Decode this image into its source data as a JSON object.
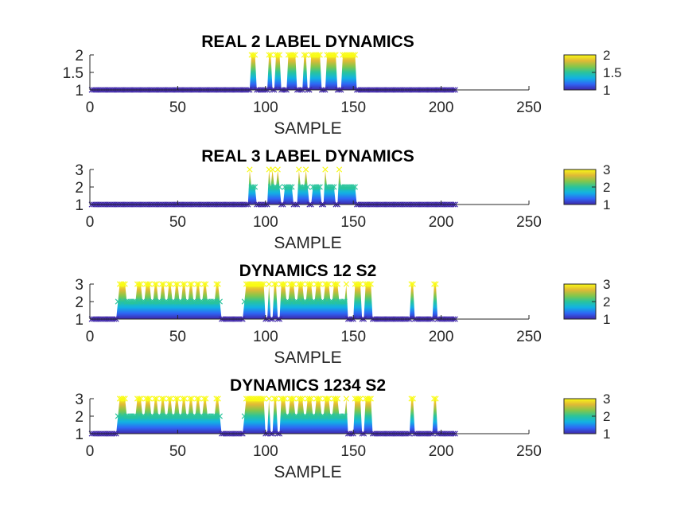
{
  "colormap": {
    "name": "parula",
    "stops": [
      "#3e26a8",
      "#2f66f5",
      "#12b2e3",
      "#29c49c",
      "#85c64a",
      "#e0b936",
      "#f9fb15"
    ]
  },
  "chart_data": [
    {
      "type": "area",
      "title": "REAL 2 LABEL DYNAMICS",
      "xlabel": "SAMPLE",
      "ylabel": "",
      "xlim": [
        0,
        250
      ],
      "ylim": [
        1,
        2
      ],
      "xticks": [
        "0",
        "50",
        "100",
        "150",
        "200",
        "250"
      ],
      "yticks": [
        "1",
        "1.5",
        "2"
      ],
      "colorbar_ticks": [
        "1",
        "1.5",
        "2"
      ],
      "n_samples": 208,
      "segments": [
        [
          1,
          91,
          1
        ],
        [
          92,
          94,
          2
        ],
        [
          95,
          101,
          1
        ],
        [
          102,
          103,
          2
        ],
        [
          104,
          105,
          1
        ],
        [
          106,
          108,
          2
        ],
        [
          109,
          112,
          1
        ],
        [
          113,
          117,
          2
        ],
        [
          118,
          121,
          1
        ],
        [
          122,
          123,
          2
        ],
        [
          124,
          125,
          1
        ],
        [
          126,
          131,
          2
        ],
        [
          132,
          134,
          1
        ],
        [
          135,
          140,
          2
        ],
        [
          141,
          143,
          1
        ],
        [
          144,
          151,
          2
        ],
        [
          152,
          208,
          1
        ]
      ]
    },
    {
      "type": "area",
      "title": "REAL 3 LABEL DYNAMICS",
      "xlabel": "SAMPLE",
      "ylabel": "",
      "xlim": [
        0,
        250
      ],
      "ylim": [
        1,
        3
      ],
      "xticks": [
        "0",
        "50",
        "100",
        "150",
        "200",
        "250"
      ],
      "yticks": [
        "1",
        "2",
        "3"
      ],
      "colorbar_ticks": [
        "1",
        "2",
        "3"
      ],
      "n_samples": 208,
      "segments": [
        [
          1,
          90,
          1
        ],
        [
          91,
          91,
          3
        ],
        [
          92,
          94,
          2
        ],
        [
          95,
          101,
          1
        ],
        [
          102,
          102,
          3
        ],
        [
          103,
          103,
          2
        ],
        [
          104,
          104,
          3
        ],
        [
          105,
          106,
          2
        ],
        [
          107,
          107,
          3
        ],
        [
          108,
          108,
          2
        ],
        [
          109,
          110,
          1
        ],
        [
          111,
          115,
          2
        ],
        [
          116,
          118,
          1
        ],
        [
          119,
          119,
          3
        ],
        [
          120,
          122,
          2
        ],
        [
          123,
          123,
          3
        ],
        [
          124,
          124,
          2
        ],
        [
          125,
          126,
          1
        ],
        [
          127,
          131,
          2
        ],
        [
          132,
          133,
          1
        ],
        [
          134,
          134,
          3
        ],
        [
          135,
          139,
          2
        ],
        [
          140,
          141,
          1
        ],
        [
          142,
          142,
          3
        ],
        [
          143,
          151,
          2
        ],
        [
          152,
          208,
          1
        ]
      ]
    },
    {
      "type": "area",
      "title": "DYNAMICS 12 S2",
      "xlabel": "SAMPLE",
      "ylabel": "",
      "xlim": [
        0,
        250
      ],
      "ylim": [
        1,
        3
      ],
      "xticks": [
        "0",
        "50",
        "100",
        "150",
        "200",
        "250"
      ],
      "yticks": [
        "1",
        "2",
        "3"
      ],
      "colorbar_ticks": [
        "1",
        "2",
        "3"
      ],
      "n_samples": 208,
      "segments": [
        [
          1,
          15,
          1
        ],
        [
          16,
          16,
          2
        ],
        [
          17,
          20,
          3
        ],
        [
          21,
          26,
          2
        ],
        [
          27,
          29,
          3
        ],
        [
          30,
          31,
          2
        ],
        [
          32,
          34,
          3
        ],
        [
          35,
          36,
          2
        ],
        [
          37,
          38,
          3
        ],
        [
          39,
          40,
          2
        ],
        [
          41,
          42,
          3
        ],
        [
          43,
          44,
          2
        ],
        [
          45,
          46,
          3
        ],
        [
          47,
          48,
          2
        ],
        [
          49,
          50,
          3
        ],
        [
          51,
          52,
          2
        ],
        [
          53,
          54,
          3
        ],
        [
          55,
          56,
          2
        ],
        [
          57,
          58,
          3
        ],
        [
          59,
          60,
          2
        ],
        [
          61,
          62,
          3
        ],
        [
          63,
          64,
          2
        ],
        [
          65,
          66,
          3
        ],
        [
          67,
          71,
          2
        ],
        [
          72,
          73,
          3
        ],
        [
          74,
          74,
          2
        ],
        [
          75,
          87,
          1
        ],
        [
          88,
          88,
          2
        ],
        [
          89,
          99,
          3
        ],
        [
          100,
          101,
          1
        ],
        [
          102,
          102,
          3
        ],
        [
          103,
          104,
          1
        ],
        [
          105,
          106,
          3
        ],
        [
          107,
          108,
          1
        ],
        [
          109,
          111,
          3
        ],
        [
          112,
          113,
          2
        ],
        [
          114,
          116,
          3
        ],
        [
          117,
          118,
          2
        ],
        [
          119,
          121,
          3
        ],
        [
          122,
          123,
          2
        ],
        [
          124,
          126,
          3
        ],
        [
          127,
          128,
          2
        ],
        [
          129,
          131,
          3
        ],
        [
          132,
          133,
          2
        ],
        [
          134,
          136,
          3
        ],
        [
          137,
          138,
          2
        ],
        [
          139,
          141,
          3
        ],
        [
          142,
          145,
          2
        ],
        [
          146,
          146,
          3
        ],
        [
          147,
          150,
          1
        ],
        [
          151,
          154,
          3
        ],
        [
          155,
          156,
          1
        ],
        [
          157,
          160,
          3
        ],
        [
          161,
          182,
          1
        ],
        [
          183,
          184,
          3
        ],
        [
          185,
          195,
          1
        ],
        [
          196,
          197,
          3
        ],
        [
          198,
          208,
          1
        ]
      ]
    },
    {
      "type": "area",
      "title": "DYNAMICS 1234 S2",
      "xlabel": "SAMPLE",
      "ylabel": "",
      "xlim": [
        0,
        250
      ],
      "ylim": [
        1,
        3
      ],
      "xticks": [
        "0",
        "50",
        "100",
        "150",
        "200",
        "250"
      ],
      "yticks": [
        "1",
        "2",
        "3"
      ],
      "colorbar_ticks": [
        "1",
        "2",
        "3"
      ],
      "n_samples": 208,
      "segments": [
        [
          1,
          15,
          1
        ],
        [
          16,
          16,
          2
        ],
        [
          17,
          20,
          3
        ],
        [
          21,
          26,
          2
        ],
        [
          27,
          29,
          3
        ],
        [
          30,
          31,
          2
        ],
        [
          32,
          34,
          3
        ],
        [
          35,
          36,
          2
        ],
        [
          37,
          38,
          3
        ],
        [
          39,
          40,
          2
        ],
        [
          41,
          42,
          3
        ],
        [
          43,
          44,
          2
        ],
        [
          45,
          46,
          3
        ],
        [
          47,
          48,
          2
        ],
        [
          49,
          50,
          3
        ],
        [
          51,
          52,
          2
        ],
        [
          53,
          54,
          3
        ],
        [
          55,
          56,
          2
        ],
        [
          57,
          58,
          3
        ],
        [
          59,
          60,
          2
        ],
        [
          61,
          62,
          3
        ],
        [
          63,
          64,
          2
        ],
        [
          65,
          66,
          3
        ],
        [
          67,
          71,
          2
        ],
        [
          72,
          73,
          3
        ],
        [
          74,
          74,
          2
        ],
        [
          75,
          87,
          1
        ],
        [
          88,
          88,
          2
        ],
        [
          89,
          99,
          3
        ],
        [
          100,
          101,
          1
        ],
        [
          102,
          102,
          3
        ],
        [
          103,
          104,
          1
        ],
        [
          105,
          106,
          3
        ],
        [
          107,
          108,
          1
        ],
        [
          109,
          111,
          3
        ],
        [
          112,
          113,
          2
        ],
        [
          114,
          116,
          3
        ],
        [
          117,
          118,
          2
        ],
        [
          119,
          121,
          3
        ],
        [
          122,
          123,
          2
        ],
        [
          124,
          126,
          3
        ],
        [
          127,
          128,
          2
        ],
        [
          129,
          131,
          3
        ],
        [
          132,
          133,
          2
        ],
        [
          134,
          136,
          3
        ],
        [
          137,
          138,
          2
        ],
        [
          139,
          141,
          3
        ],
        [
          142,
          145,
          2
        ],
        [
          146,
          146,
          3
        ],
        [
          147,
          150,
          1
        ],
        [
          151,
          154,
          3
        ],
        [
          155,
          156,
          1
        ],
        [
          157,
          160,
          3
        ],
        [
          161,
          182,
          1
        ],
        [
          183,
          184,
          3
        ],
        [
          185,
          195,
          1
        ],
        [
          196,
          197,
          3
        ],
        [
          198,
          208,
          1
        ]
      ]
    }
  ]
}
